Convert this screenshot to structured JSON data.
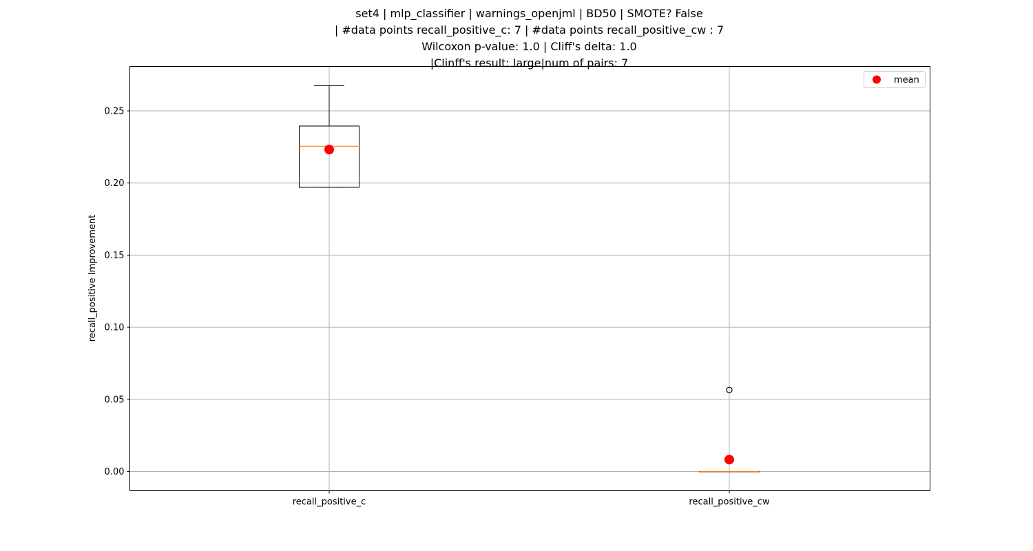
{
  "chart_data": {
    "type": "box",
    "title_lines": [
      "set4 | mlp_classifier | warnings_openjml | BD50 | SMOTE? False",
      "| #data points recall_positive_c: 7 | #data points recall_positive_cw : 7",
      "Wilcoxon p-value: 1.0 | Cliff's delta: 1.0",
      "|Clinff's result: large|num of pairs: 7"
    ],
    "xlabel": "",
    "ylabel": "recall_positive Improvement",
    "ylim": [
      -0.013,
      0.28
    ],
    "yticks": [
      0.0,
      0.05,
      0.1,
      0.15,
      0.2,
      0.25
    ],
    "ytick_labels": [
      "0.00",
      "0.05",
      "0.10",
      "0.15",
      "0.20",
      "0.25"
    ],
    "grid": true,
    "legend": {
      "placement": "top-right",
      "entries": [
        {
          "label": "mean",
          "color": "#ff0000",
          "marker": "circle"
        }
      ]
    },
    "categories": [
      "recall_positive_c",
      "recall_positive_cw"
    ],
    "boxes": [
      {
        "name": "recall_positive_c",
        "whisker_low": 0.197,
        "q1": 0.197,
        "median": 0.2255,
        "q3": 0.2395,
        "whisker_high": 0.2675,
        "mean": 0.2232,
        "outliers": []
      },
      {
        "name": "recall_positive_cw",
        "whisker_low": 0.0,
        "q1": 0.0,
        "median": 0.0,
        "q3": 0.0,
        "whisker_high": 0.0,
        "mean": 0.0082,
        "outliers": [
          0.0565
        ]
      }
    ],
    "colors": {
      "median": "#ff7f0e",
      "mean": "#ff0000",
      "box": "#000000",
      "grid": "#b0b0b0"
    }
  }
}
